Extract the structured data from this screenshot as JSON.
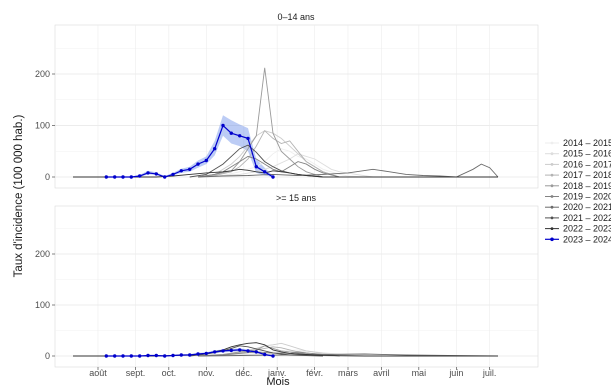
{
  "chart_data": {
    "type": "line",
    "title": "",
    "xlabel": "Mois",
    "ylabel": "Taux d'incidence (100 000 hab.)",
    "ylim": [
      -10,
      280
    ],
    "yticks": [
      0,
      100,
      200
    ],
    "xlim": [
      0,
      51
    ],
    "xticks": [
      {
        "pos": 3.0,
        "label": "août"
      },
      {
        "pos": 7.5,
        "label": "sept."
      },
      {
        "pos": 11.5,
        "label": "oct."
      },
      {
        "pos": 16.0,
        "label": "nov."
      },
      {
        "pos": 20.5,
        "label": "déc."
      },
      {
        "pos": 24.5,
        "label": "janv."
      },
      {
        "pos": 29.0,
        "label": "févr."
      },
      {
        "pos": 33.0,
        "label": "mars"
      },
      {
        "pos": 37.0,
        "label": "avril"
      },
      {
        "pos": 41.5,
        "label": "mai"
      },
      {
        "pos": 46.0,
        "label": "juin"
      },
      {
        "pos": 50.0,
        "label": "juil."
      }
    ],
    "grid": true,
    "legend_position": "right",
    "legend": [
      {
        "name": "2014 – 2015",
        "color": "#eeeeee"
      },
      {
        "name": "2015 – 2016",
        "color": "#dddddd"
      },
      {
        "name": "2016 – 2017",
        "color": "#cccccc"
      },
      {
        "name": "2017 – 2018",
        "color": "#b3b3b3"
      },
      {
        "name": "2018 – 2019",
        "color": "#9a9a9a"
      },
      {
        "name": "2019 – 2020",
        "color": "#838383"
      },
      {
        "name": "2020 – 2021",
        "color": "#6b6b6b"
      },
      {
        "name": "2021 – 2022",
        "color": "#515151"
      },
      {
        "name": "2022 – 2023",
        "color": "#333333"
      },
      {
        "name": "2023 – 2024",
        "color": "#0000cc"
      }
    ],
    "facets": [
      {
        "label": "0–14 ans",
        "series": [
          {
            "name": "2014 – 2015",
            "color": "#eeeeee",
            "x": [
              16,
              18,
              20,
              22,
              23,
              24,
              25,
              26,
              27,
              28,
              29,
              30,
              31,
              32,
              33,
              35
            ],
            "y": [
              0,
              3,
              10,
              20,
              30,
              45,
              55,
              50,
              40,
              35,
              25,
              15,
              10,
              5,
              2,
              0
            ]
          },
          {
            "name": "2015 – 2016",
            "color": "#dddddd",
            "x": [
              16,
              18,
              20,
              22,
              24,
              26,
              27,
              28,
              29,
              30,
              31,
              32,
              34,
              36
            ],
            "y": [
              0,
              3,
              5,
              10,
              20,
              35,
              45,
              40,
              35,
              25,
              15,
              10,
              5,
              0
            ]
          },
          {
            "name": "2016 – 2017",
            "color": "#cccccc",
            "x": [
              15,
              17,
              18,
              19,
              20,
              21,
              22,
              23,
              24,
              25,
              26,
              27,
              28,
              30,
              32
            ],
            "y": [
              0,
              5,
              15,
              25,
              40,
              60,
              80,
              90,
              85,
              75,
              60,
              45,
              30,
              10,
              0
            ]
          },
          {
            "name": "2017 – 2018",
            "color": "#b3b3b3",
            "x": [
              15,
              17,
              19,
              20,
              21,
              22,
              23,
              24,
              25,
              26,
              27,
              28,
              29,
              30,
              32
            ],
            "y": [
              0,
              3,
              10,
              20,
              35,
              60,
              90,
              75,
              65,
              70,
              50,
              30,
              20,
              10,
              0
            ]
          },
          {
            "name": "2018 – 2019",
            "color": "#9a9a9a",
            "x": [
              15,
              17,
              19,
              20,
              21,
              22,
              23,
              24,
              25,
              26,
              27,
              28,
              30
            ],
            "y": [
              0,
              5,
              12,
              30,
              55,
              80,
              212,
              85,
              50,
              35,
              20,
              10,
              0
            ]
          },
          {
            "name": "2019 – 2020",
            "color": "#838383",
            "x": [
              15,
              17,
              18,
              19,
              20,
              21,
              22,
              23,
              24,
              25,
              26,
              27,
              28,
              29,
              30,
              32
            ],
            "y": [
              0,
              5,
              10,
              20,
              30,
              40,
              35,
              25,
              15,
              10,
              20,
              30,
              25,
              15,
              8,
              0
            ]
          },
          {
            "name": "2020 – 2021",
            "color": "#6b6b6b",
            "x": [
              15,
              18,
              21,
              24,
              27,
              30,
              33,
              36,
              38,
              40,
              42,
              44,
              46,
              48,
              49,
              50,
              51
            ],
            "y": [
              0,
              2,
              3,
              5,
              3,
              5,
              8,
              15,
              10,
              5,
              3,
              2,
              0,
              15,
              25,
              18,
              0
            ]
          },
          {
            "name": "2021 – 2022",
            "color": "#515151",
            "x": [
              14,
              16,
              17,
              18,
              19,
              20,
              21,
              22,
              23,
              24,
              25,
              26,
              27,
              28,
              30,
              32
            ],
            "y": [
              0,
              5,
              15,
              25,
              40,
              55,
              62,
              48,
              30,
              20,
              12,
              8,
              5,
              3,
              0,
              0
            ]
          },
          {
            "name": "2022 – 2023",
            "color": "#333333",
            "x": [
              0,
              6,
              8,
              10,
              12,
              14,
              16,
              18,
              19,
              20,
              21,
              22,
              23,
              24,
              25,
              26,
              27,
              28,
              30,
              35,
              40,
              45,
              51
            ],
            "y": [
              0,
              0,
              0,
              0,
              2,
              5,
              8,
              10,
              12,
              15,
              13,
              10,
              8,
              12,
              10,
              8,
              5,
              3,
              0,
              0,
              0,
              0,
              0
            ]
          }
        ],
        "highlight": {
          "name": "2023 – 2024",
          "color": "#0000cc",
          "x": [
            4,
            5,
            6,
            7,
            8,
            9,
            10,
            11,
            12,
            13,
            14,
            15,
            16,
            17,
            18,
            19,
            20,
            21,
            22,
            23,
            24
          ],
          "y": [
            0,
            0,
            0,
            0,
            2,
            8,
            6,
            0,
            5,
            12,
            15,
            25,
            32,
            55,
            100,
            85,
            80,
            75,
            20,
            10,
            0
          ],
          "lower": [
            0,
            0,
            0,
            0,
            0,
            5,
            4,
            0,
            3,
            8,
            10,
            18,
            25,
            42,
            80,
            65,
            60,
            50,
            8,
            3,
            0
          ],
          "upper": [
            1,
            1,
            1,
            1,
            4,
            12,
            9,
            2,
            8,
            16,
            20,
            32,
            40,
            70,
            120,
            110,
            102,
            95,
            35,
            18,
            2
          ]
        }
      },
      {
        "label": ">= 15 ans",
        "series": [
          {
            "name": "2014 – 2015",
            "color": "#eeeeee",
            "x": [
              16,
              20,
              23,
              25,
              27,
              29,
              31,
              33,
              35
            ],
            "y": [
              0,
              3,
              6,
              10,
              12,
              8,
              5,
              2,
              0
            ]
          },
          {
            "name": "2015 – 2016",
            "color": "#dddddd",
            "x": [
              16,
              20,
              24,
              26,
              28,
              30,
              32,
              34
            ],
            "y": [
              0,
              2,
              5,
              8,
              10,
              6,
              3,
              0
            ]
          },
          {
            "name": "2016 – 2017",
            "color": "#cccccc",
            "x": [
              15,
              18,
              20,
              22,
              23,
              24,
              25,
              26,
              27,
              28,
              30,
              32
            ],
            "y": [
              0,
              3,
              8,
              15,
              20,
              22,
              25,
              20,
              15,
              10,
              5,
              0
            ]
          },
          {
            "name": "2017 – 2018",
            "color": "#b3b3b3",
            "x": [
              15,
              18,
              20,
              22,
              23,
              24,
              25,
              26,
              27,
              28,
              30
            ],
            "y": [
              0,
              2,
              6,
              12,
              15,
              18,
              16,
              12,
              8,
              4,
              0
            ]
          },
          {
            "name": "2018 – 2019",
            "color": "#9a9a9a",
            "x": [
              15,
              18,
              20,
              22,
              23,
              24,
              25,
              26,
              28,
              30
            ],
            "y": [
              0,
              3,
              8,
              12,
              20,
              15,
              10,
              8,
              4,
              0
            ]
          },
          {
            "name": "2019 – 2020",
            "color": "#838383",
            "x": [
              15,
              18,
              20,
              22,
              24,
              26,
              27,
              28,
              30,
              32
            ],
            "y": [
              0,
              2,
              5,
              8,
              6,
              5,
              8,
              6,
              3,
              0
            ]
          },
          {
            "name": "2020 – 2021",
            "color": "#6b6b6b",
            "x": [
              15,
              20,
              25,
              30,
              35,
              40,
              45,
              51
            ],
            "y": [
              0,
              1,
              2,
              3,
              4,
              2,
              1,
              0
            ]
          },
          {
            "name": "2021 – 2022",
            "color": "#515151",
            "x": [
              14,
              16,
              18,
              19,
              20,
              21,
              22,
              23,
              24,
              25,
              26,
              28,
              30
            ],
            "y": [
              0,
              4,
              10,
              15,
              20,
              18,
              14,
              10,
              6,
              4,
              2,
              1,
              0
            ]
          },
          {
            "name": "2022 – 2023",
            "color": "#333333",
            "x": [
              0,
              6,
              10,
              14,
              16,
              18,
              19,
              20,
              21,
              22,
              23,
              24,
              25,
              26,
              28,
              30,
              35,
              40,
              45,
              51
            ],
            "y": [
              0,
              0,
              0,
              2,
              5,
              12,
              18,
              22,
              25,
              26,
              22,
              12,
              8,
              5,
              3,
              1,
              0,
              0,
              0,
              0
            ]
          }
        ],
        "highlight": {
          "name": "2023 – 2024",
          "color": "#0000cc",
          "x": [
            4,
            5,
            6,
            7,
            8,
            9,
            10,
            11,
            12,
            13,
            14,
            15,
            16,
            17,
            18,
            19,
            20,
            21,
            22,
            23,
            24
          ],
          "y": [
            0,
            0,
            0,
            0,
            0,
            1,
            1,
            0,
            1,
            2,
            2,
            4,
            5,
            8,
            10,
            11,
            12,
            10,
            8,
            3,
            0
          ],
          "lower": [
            0,
            0,
            0,
            0,
            0,
            0,
            0,
            0,
            0,
            1,
            1,
            2,
            3,
            5,
            7,
            8,
            9,
            7,
            5,
            1,
            0
          ],
          "upper": [
            1,
            1,
            1,
            1,
            1,
            2,
            2,
            1,
            2,
            3,
            4,
            6,
            7,
            11,
            13,
            14,
            15,
            13,
            11,
            5,
            1
          ]
        }
      }
    ]
  }
}
